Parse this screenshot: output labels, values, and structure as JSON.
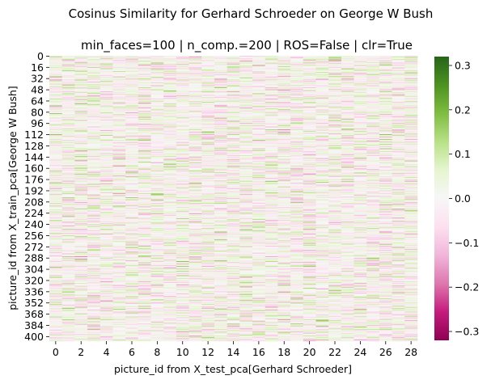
{
  "figure": {
    "suptitle": "Cosinus Similarity for Gerhard Schroeder on George W Bush",
    "subtitle": "min_faces=100 | n_comp.=200 | ROS=False | clr=True"
  },
  "chart_data": {
    "type": "heatmap",
    "title": "min_faces=100 | n_comp.=200 | ROS=False | clr=True",
    "xlabel": "picture_id from X_test_pca[Gerhard Schroeder]",
    "ylabel": "picture_id from X_train_pca[George W Bush]",
    "x_ticks": [
      "0",
      "2",
      "4",
      "6",
      "8",
      "10",
      "12",
      "14",
      "16",
      "18",
      "20",
      "22",
      "24",
      "26",
      "28"
    ],
    "y_ticks": [
      "0",
      "16",
      "32",
      "48",
      "64",
      "80",
      "96",
      "112",
      "128",
      "144",
      "160",
      "176",
      "192",
      "208",
      "224",
      "240",
      "256",
      "272",
      "288",
      "304",
      "320",
      "336",
      "352",
      "368",
      "384",
      "400"
    ],
    "n_cols": 29,
    "n_rows": 407,
    "colormap": "PiYG",
    "vmin": -0.32,
    "vmax": 0.32,
    "colorbar_ticks": [
      "0.3",
      "0.2",
      "0.1",
      "0.0",
      "−0.1",
      "−0.2",
      "−0.3"
    ],
    "colorbar_tick_values": [
      0.3,
      0.2,
      0.1,
      0.0,
      -0.1,
      -0.2,
      -0.3
    ],
    "values_note": "Values per cell are not readable; rendered as noise in [-0.32, 0.32]"
  }
}
